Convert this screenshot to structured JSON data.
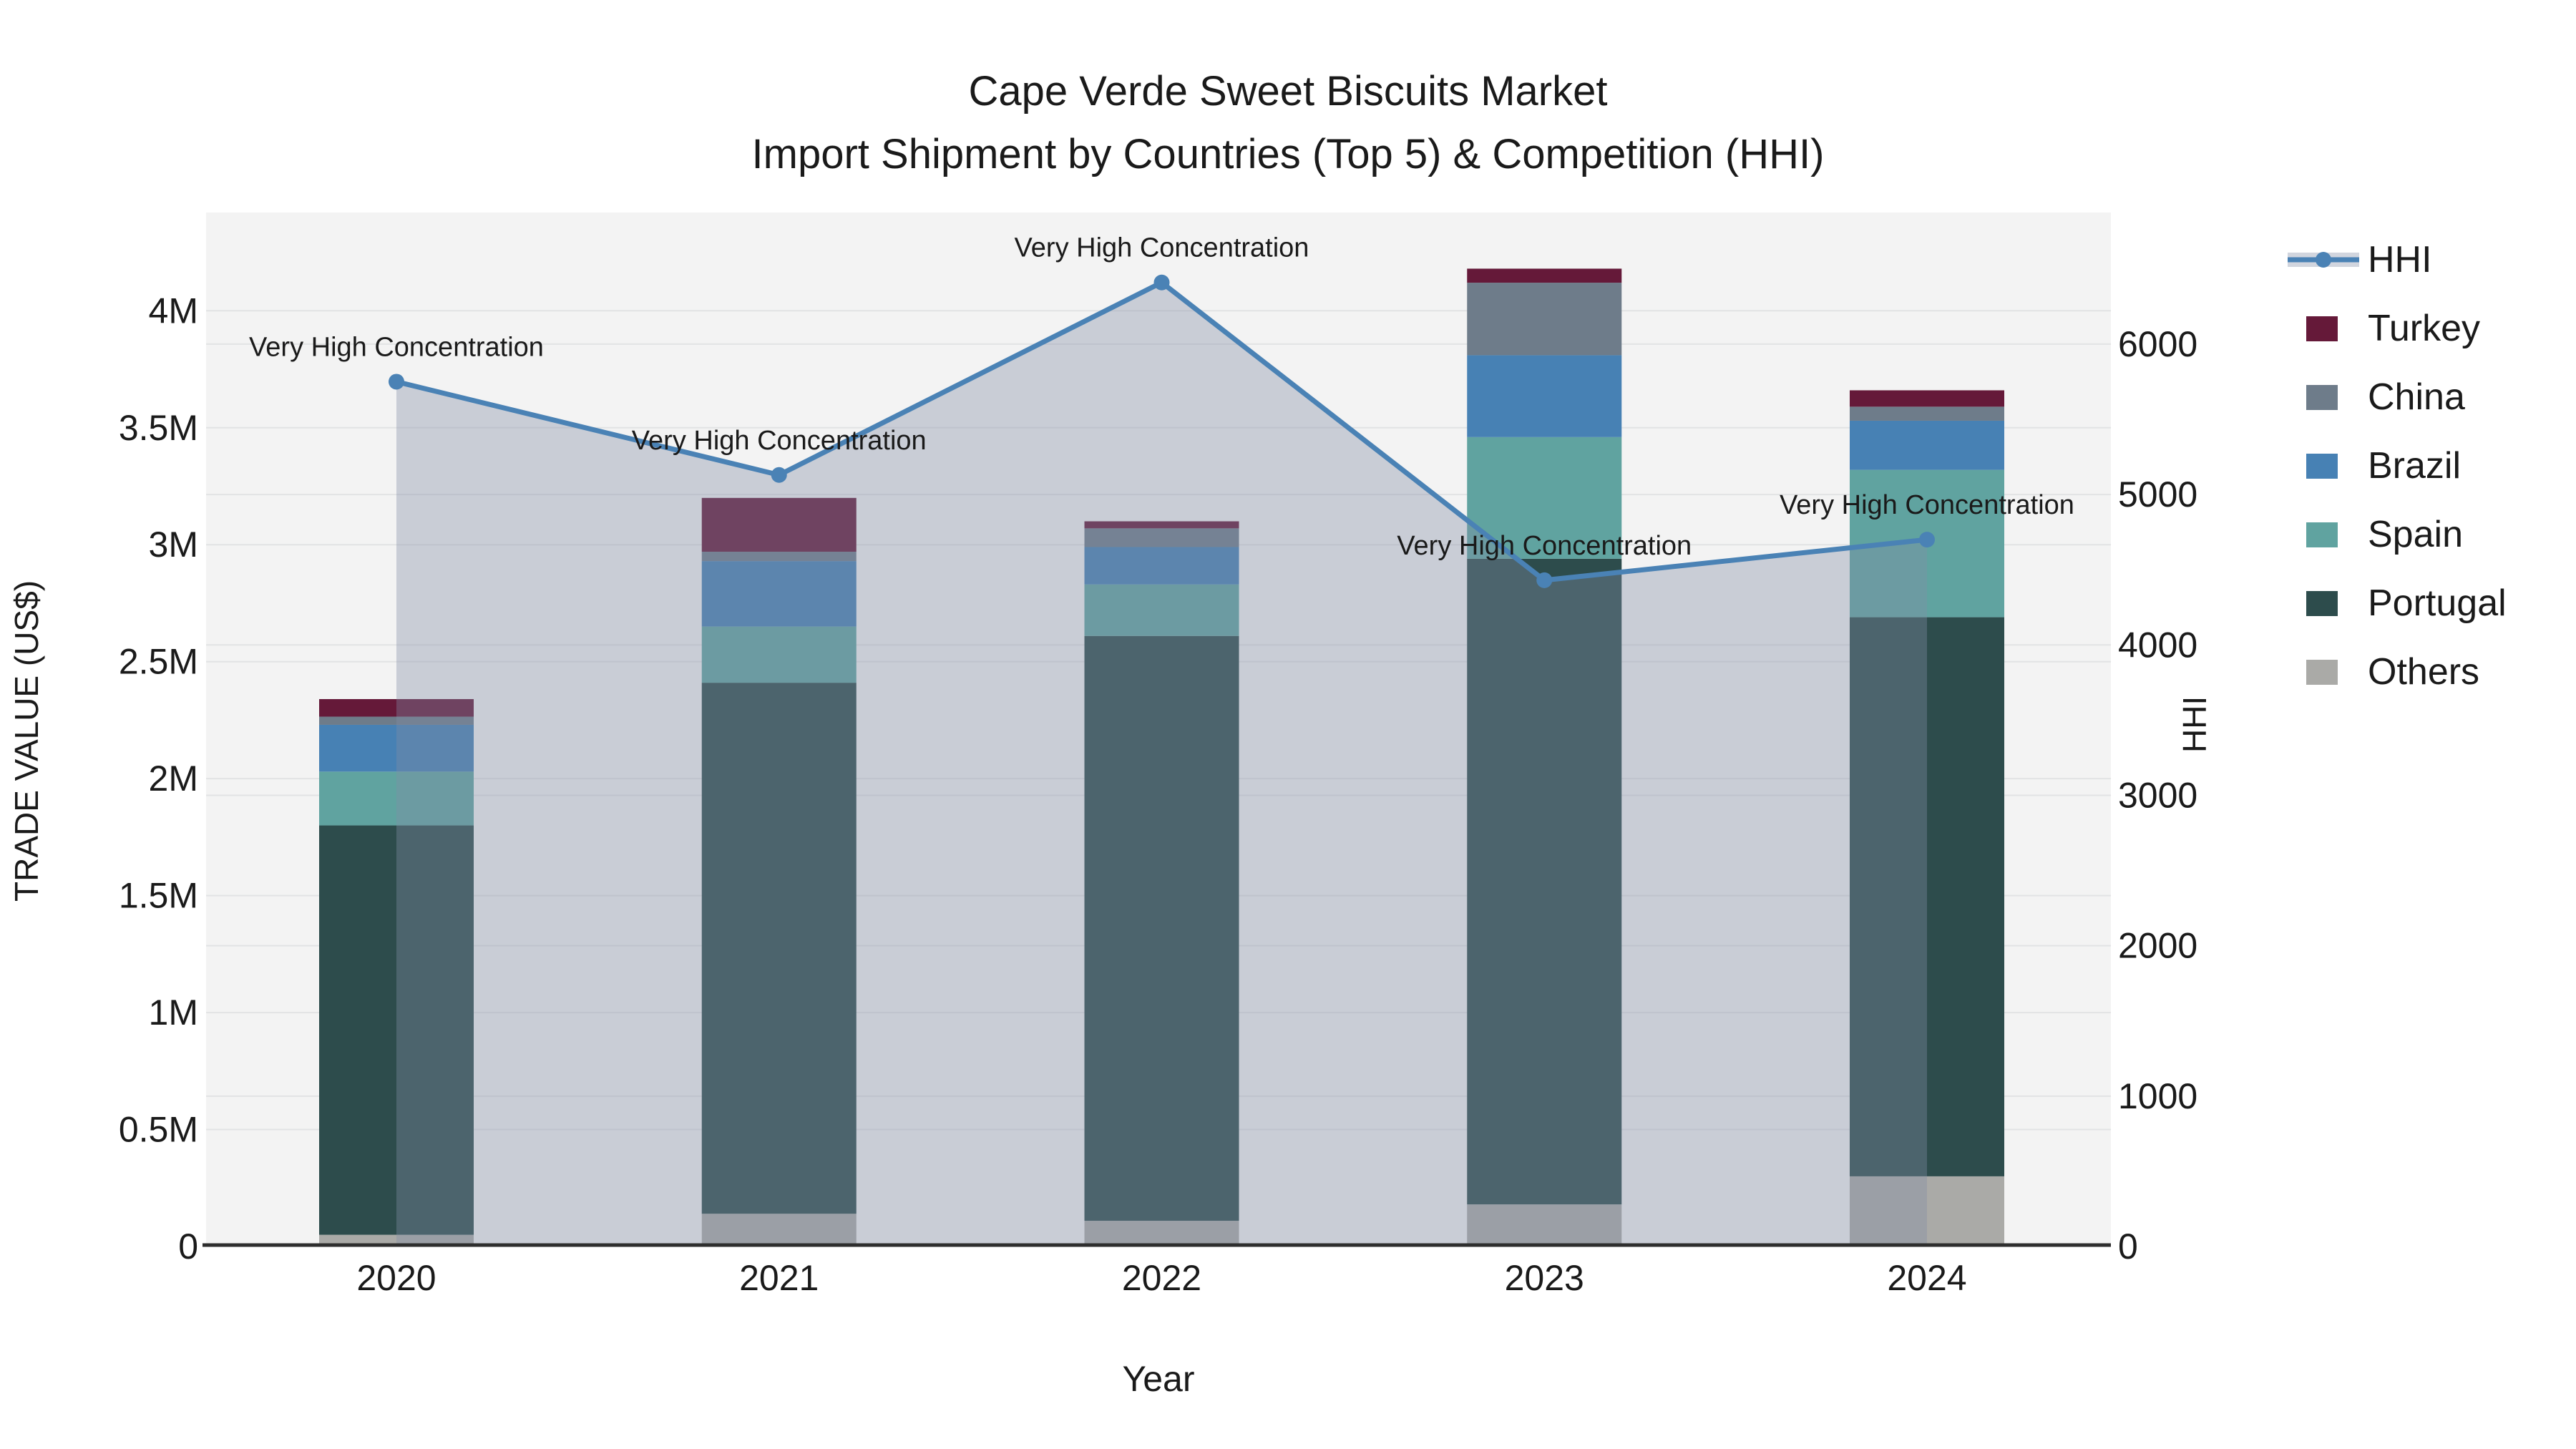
{
  "title": {
    "line1": "Cape Verde Sweet Biscuits Market",
    "line2": "Import Shipment by Countries (Top 5) & Competition (HHI)"
  },
  "axes": {
    "left_label": "TRADE VALUE (US$)",
    "right_label": "HHI",
    "x_label": "Year",
    "left_ticks": [
      {
        "v": 0,
        "label": "0"
      },
      {
        "v": 500000,
        "label": "0.5M"
      },
      {
        "v": 1000000,
        "label": "1M"
      },
      {
        "v": 1500000,
        "label": "1.5M"
      },
      {
        "v": 2000000,
        "label": "2M"
      },
      {
        "v": 2500000,
        "label": "2.5M"
      },
      {
        "v": 3000000,
        "label": "3M"
      },
      {
        "v": 3500000,
        "label": "3.5M"
      },
      {
        "v": 4000000,
        "label": "4M"
      }
    ],
    "right_ticks": [
      {
        "v": 0,
        "label": "0"
      },
      {
        "v": 1000,
        "label": "1000"
      },
      {
        "v": 2000,
        "label": "2000"
      },
      {
        "v": 3000,
        "label": "3000"
      },
      {
        "v": 4000,
        "label": "4000"
      },
      {
        "v": 5000,
        "label": "5000"
      },
      {
        "v": 6000,
        "label": "6000"
      }
    ]
  },
  "legend": {
    "items": [
      {
        "label": "HHI",
        "type": "line",
        "color": "#4a82b5",
        "band": "#d1d5de"
      },
      {
        "label": "Turkey",
        "type": "box",
        "color": "#651939"
      },
      {
        "label": "China",
        "type": "box",
        "color": "#6e7c8a"
      },
      {
        "label": "Brazil",
        "type": "box",
        "color": "#4781b4"
      },
      {
        "label": "Spain",
        "type": "box",
        "color": "#60a3a0"
      },
      {
        "label": "Portugal",
        "type": "box",
        "color": "#2d4c4c"
      },
      {
        "label": "Others",
        "type": "box",
        "color": "#aaaaa7"
      }
    ]
  },
  "chart_data": {
    "type": "bar+line",
    "title": "Cape Verde Sweet Biscuits Market — Import Shipment by Countries (Top 5) & Competition (HHI)",
    "xlabel": "Year",
    "ylabel_left": "TRADE VALUE (US$)",
    "ylabel_right": "HHI",
    "x": [
      2020,
      2021,
      2022,
      2023,
      2024
    ],
    "stacking": "bottom-to-top",
    "series": [
      {
        "name": "Others",
        "color": "#aaaaa7",
        "values": [
          50000,
          140000,
          110000,
          180000,
          300000
        ]
      },
      {
        "name": "Portugal",
        "color": "#2d4c4c",
        "values": [
          1750000,
          2270000,
          2500000,
          2760000,
          2390000
        ]
      },
      {
        "name": "Spain",
        "color": "#60a3a0",
        "values": [
          230000,
          240000,
          220000,
          520000,
          630000
        ]
      },
      {
        "name": "Brazil",
        "color": "#4781b4",
        "values": [
          200000,
          280000,
          160000,
          350000,
          210000
        ]
      },
      {
        "name": "China",
        "color": "#6e7c8a",
        "values": [
          35000,
          40000,
          80000,
          310000,
          60000
        ]
      },
      {
        "name": "Turkey",
        "color": "#651939",
        "values": [
          75000,
          230000,
          30000,
          60000,
          70000
        ]
      }
    ],
    "bar_totals": [
      2340000,
      3200000,
      3100000,
      4180000,
      3660000
    ],
    "line_series": {
      "name": "HHI",
      "color": "#4a82b5",
      "area_fill": "#828da5",
      "area_opacity": 0.37,
      "values": [
        5750,
        5130,
        6410,
        4430,
        4700
      ],
      "annotations": [
        "Very High Concentration",
        "Very High Concentration",
        "Very High Concentration",
        "Very High Concentration",
        "Very High Concentration"
      ]
    },
    "ylim_left": [
      0,
      4420000
    ],
    "ylim_right": [
      0,
      6875
    ],
    "grid": true,
    "legend_position": "right",
    "plot_bg": "#f3f3f3",
    "grid_color": "#e2e3e4",
    "axis_line_color": "#2e2e2e"
  }
}
